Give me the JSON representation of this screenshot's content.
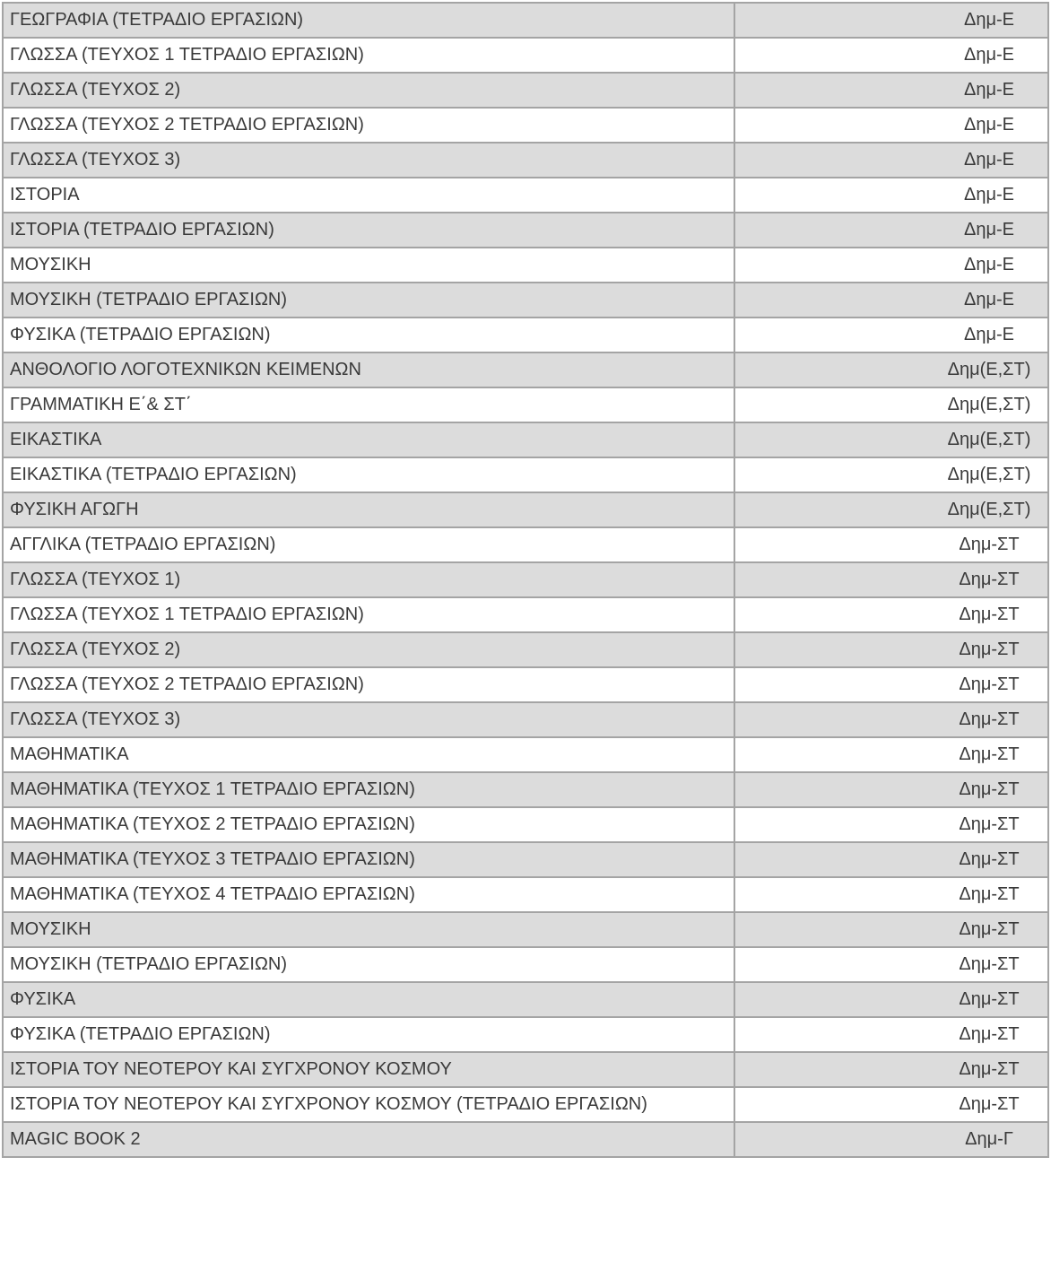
{
  "rows": [
    {
      "title": "ΓΕΩΓΡΑΦΙΑ (ΤΕΤΡΑΔΙΟ ΕΡΓΑΣΙΩΝ)",
      "grade": "Δημ-Ε"
    },
    {
      "title": "ΓΛΩΣΣΑ (ΤΕΥΧΟΣ 1 ΤΕΤΡΑΔΙΟ ΕΡΓΑΣΙΩΝ)",
      "grade": "Δημ-Ε"
    },
    {
      "title": "ΓΛΩΣΣΑ (ΤΕΥΧΟΣ 2)",
      "grade": "Δημ-Ε"
    },
    {
      "title": "ΓΛΩΣΣΑ (ΤΕΥΧΟΣ 2 ΤΕΤΡΑΔΙΟ ΕΡΓΑΣΙΩΝ)",
      "grade": "Δημ-Ε"
    },
    {
      "title": "ΓΛΩΣΣΑ (ΤΕΥΧΟΣ 3)",
      "grade": "Δημ-Ε"
    },
    {
      "title": "ΙΣΤΟΡΙΑ",
      "grade": "Δημ-Ε"
    },
    {
      "title": "ΙΣΤΟΡΙΑ (ΤΕΤΡΑΔΙΟ ΕΡΓΑΣΙΩΝ)",
      "grade": "Δημ-Ε"
    },
    {
      "title": "ΜΟΥΣΙΚΗ",
      "grade": "Δημ-Ε"
    },
    {
      "title": "ΜΟΥΣΙΚΗ (ΤΕΤΡΑΔΙΟ ΕΡΓΑΣΙΩΝ)",
      "grade": "Δημ-Ε"
    },
    {
      "title": "ΦΥΣΙΚΑ (ΤΕΤΡΑΔΙΟ ΕΡΓΑΣΙΩΝ)",
      "grade": "Δημ-Ε"
    },
    {
      "title": "ΑΝΘΟΛΟΓΙΟ ΛΟΓΟΤΕΧΝΙΚΩΝ ΚΕΙΜΕΝΩΝ",
      "grade": "Δημ(Ε,ΣΤ)"
    },
    {
      "title": "ΓΡΑΜΜΑΤΙΚΗ Ε΄& ΣΤ΄",
      "grade": "Δημ(Ε,ΣΤ)"
    },
    {
      "title": "ΕΙΚΑΣΤΙΚΑ",
      "grade": "Δημ(Ε,ΣΤ)"
    },
    {
      "title": "ΕΙΚΑΣΤΙΚΑ (ΤΕΤΡΑΔΙΟ ΕΡΓΑΣΙΩΝ)",
      "grade": "Δημ(Ε,ΣΤ)"
    },
    {
      "title": "ΦΥΣΙΚΗ ΑΓΩΓΗ",
      "grade": "Δημ(Ε,ΣΤ)"
    },
    {
      "title": "ΑΓΓΛΙΚΑ (ΤΕΤΡΑΔΙΟ ΕΡΓΑΣΙΩΝ)",
      "grade": "Δημ-ΣΤ"
    },
    {
      "title": "ΓΛΩΣΣΑ (ΤΕΥΧΟΣ 1)",
      "grade": "Δημ-ΣΤ"
    },
    {
      "title": "ΓΛΩΣΣΑ (ΤΕΥΧΟΣ 1 ΤΕΤΡΑΔΙΟ ΕΡΓΑΣΙΩΝ)",
      "grade": "Δημ-ΣΤ"
    },
    {
      "title": "ΓΛΩΣΣΑ (ΤΕΥΧΟΣ 2)",
      "grade": "Δημ-ΣΤ"
    },
    {
      "title": "ΓΛΩΣΣΑ (ΤΕΥΧΟΣ 2 ΤΕΤΡΑΔΙΟ ΕΡΓΑΣΙΩΝ)",
      "grade": "Δημ-ΣΤ"
    },
    {
      "title": "ΓΛΩΣΣΑ (ΤΕΥΧΟΣ 3)",
      "grade": "Δημ-ΣΤ"
    },
    {
      "title": "ΜΑΘΗΜΑΤΙΚΑ",
      "grade": "Δημ-ΣΤ"
    },
    {
      "title": "ΜΑΘΗΜΑΤΙΚΑ (ΤΕΥΧΟΣ 1 ΤΕΤΡΑΔΙΟ ΕΡΓΑΣΙΩΝ)",
      "grade": "Δημ-ΣΤ"
    },
    {
      "title": "ΜΑΘΗΜΑΤΙΚΑ (ΤΕΥΧΟΣ 2 ΤΕΤΡΑΔΙΟ ΕΡΓΑΣΙΩΝ)",
      "grade": "Δημ-ΣΤ"
    },
    {
      "title": "ΜΑΘΗΜΑΤΙΚΑ (ΤΕΥΧΟΣ 3 ΤΕΤΡΑΔΙΟ ΕΡΓΑΣΙΩΝ)",
      "grade": "Δημ-ΣΤ"
    },
    {
      "title": "ΜΑΘΗΜΑΤΙΚΑ (ΤΕΥΧΟΣ 4 ΤΕΤΡΑΔΙΟ ΕΡΓΑΣΙΩΝ)",
      "grade": "Δημ-ΣΤ"
    },
    {
      "title": "ΜΟΥΣΙΚΗ",
      "grade": "Δημ-ΣΤ"
    },
    {
      "title": "ΜΟΥΣΙΚΗ (ΤΕΤΡΑΔΙΟ ΕΡΓΑΣΙΩΝ)",
      "grade": "Δημ-ΣΤ"
    },
    {
      "title": "ΦΥΣΙΚΑ",
      "grade": "Δημ-ΣΤ"
    },
    {
      "title": "ΦΥΣΙΚΑ (ΤΕΤΡΑΔΙΟ ΕΡΓΑΣΙΩΝ)",
      "grade": "Δημ-ΣΤ"
    },
    {
      "title": "ΙΣΤΟΡΙΑ ΤΟΥ ΝΕΟΤΕΡΟΥ ΚΑΙ ΣΥΓΧΡΟΝΟΥ ΚΟΣΜΟΥ",
      "grade": "Δημ-ΣΤ"
    },
    {
      "title": "ΙΣΤΟΡΙΑ ΤΟΥ ΝΕΟΤΕΡΟΥ ΚΑΙ ΣΥΓΧΡΟΝΟΥ ΚΟΣΜΟΥ (ΤΕΤΡΑΔΙΟ ΕΡΓΑΣΙΩΝ)",
      "grade": "Δημ-ΣΤ"
    },
    {
      "title": "MAGIC BOOK 2",
      "grade": "Δημ-Γ"
    }
  ]
}
